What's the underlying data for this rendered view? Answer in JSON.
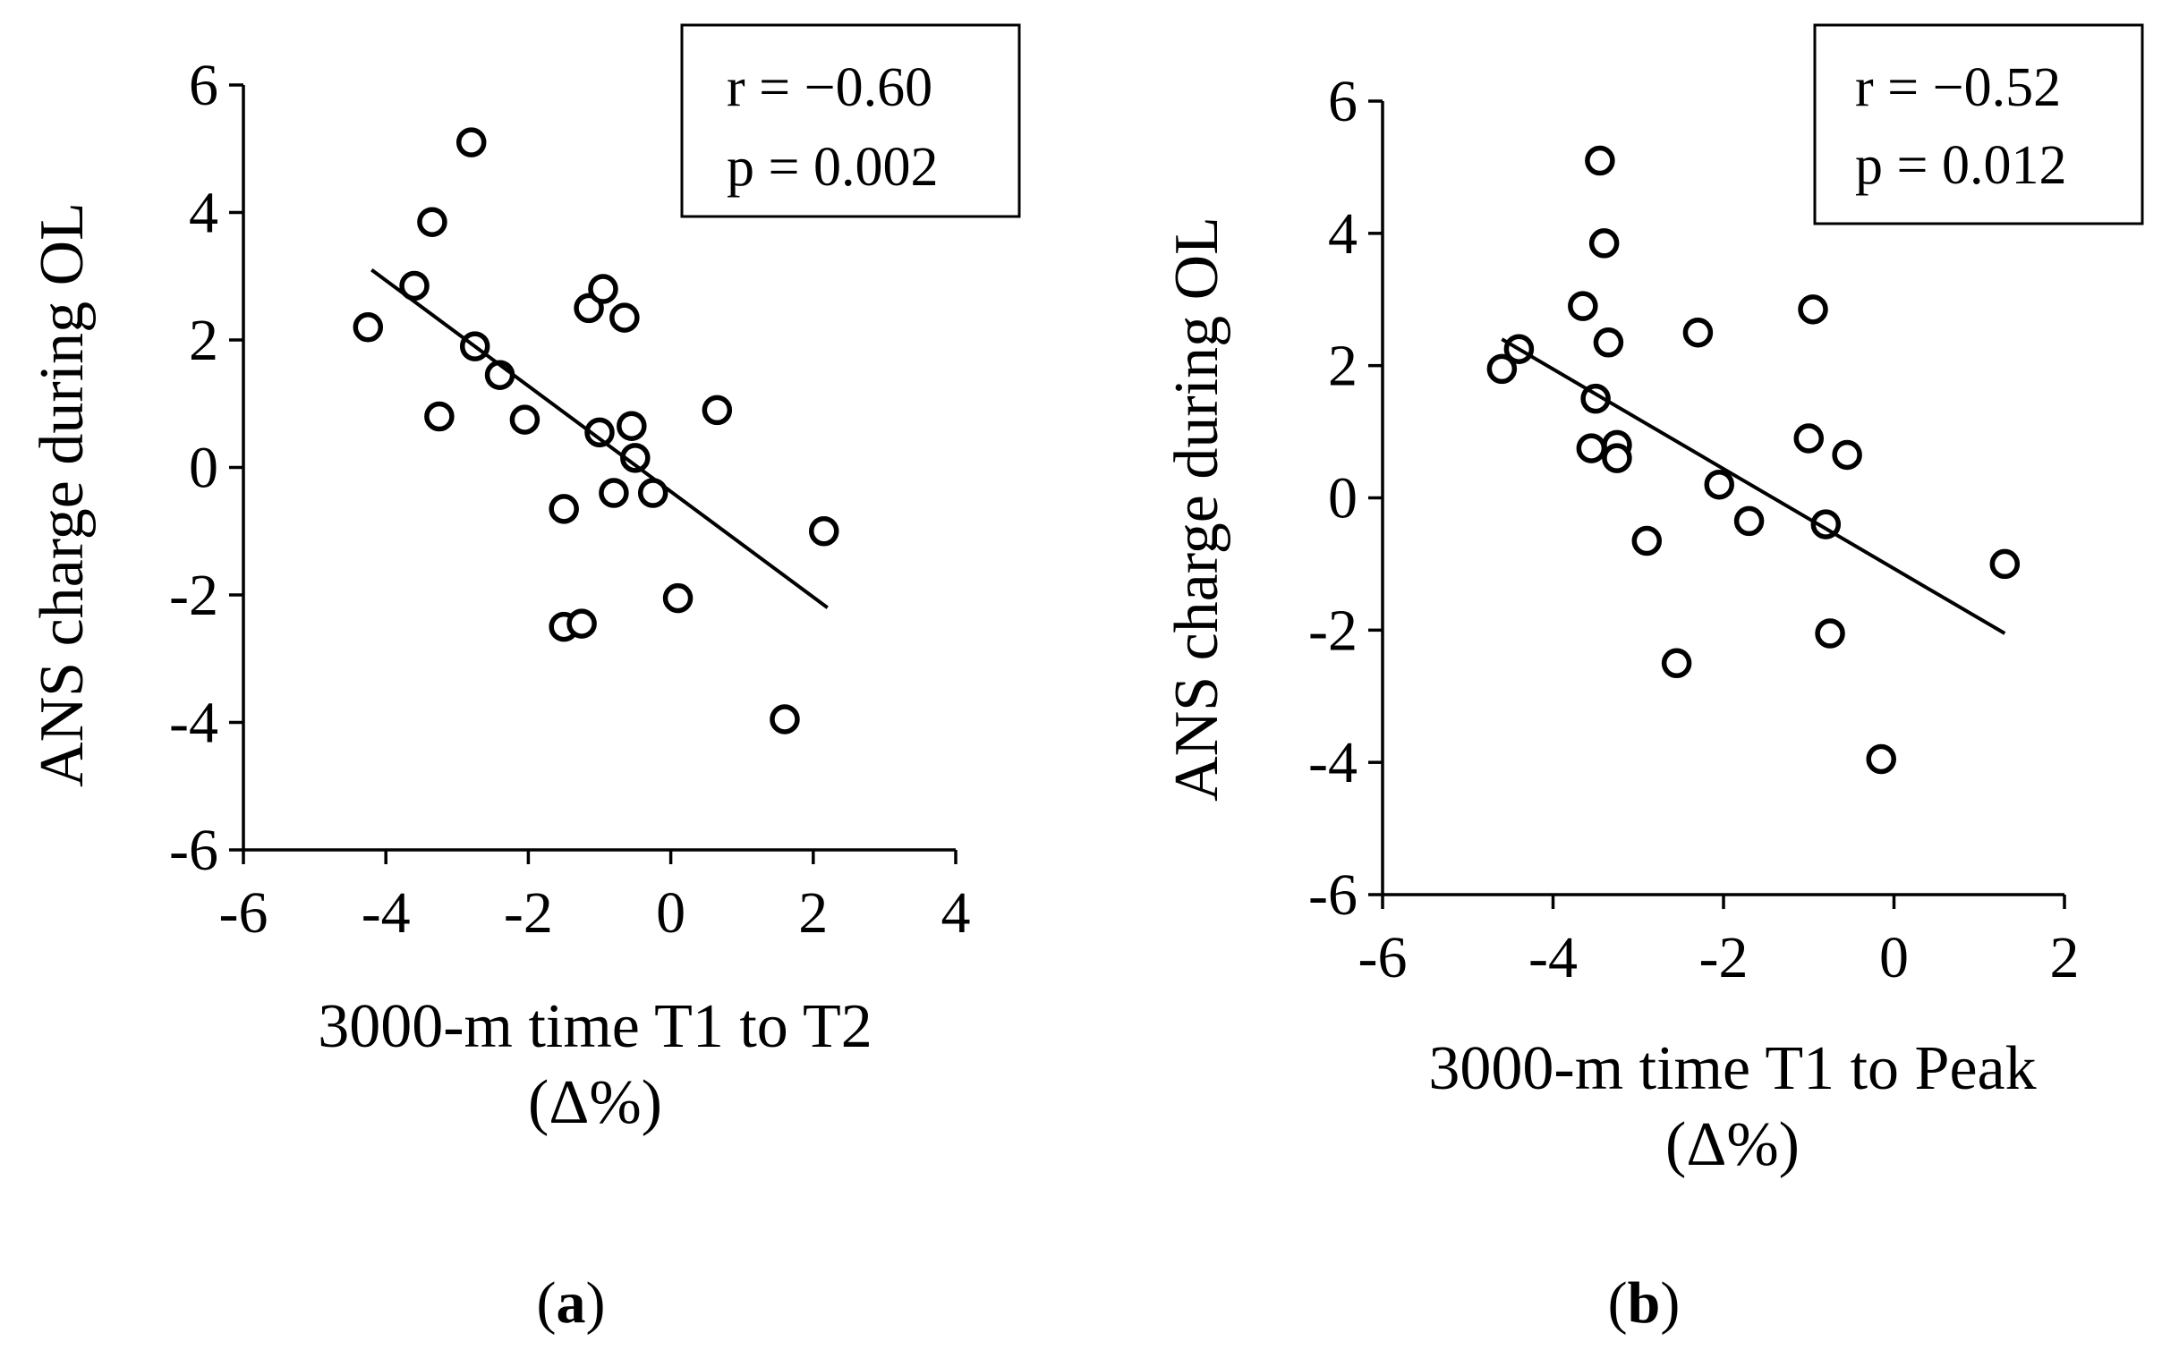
{
  "chart_data": [
    {
      "type": "scatter",
      "panel_label": "a",
      "xlabel": [
        "3000-m time T1 to T2",
        "(Δ%)"
      ],
      "ylabel": "ANS charge during OL",
      "xlim": [
        -6,
        4
      ],
      "ylim": [
        -6,
        6
      ],
      "xticks": [
        -6,
        -4,
        -2,
        0,
        2,
        4
      ],
      "yticks": [
        -6,
        -4,
        -2,
        0,
        2,
        4,
        6
      ],
      "grid": false,
      "stats": [
        "r = −0.60",
        "p = 0.002"
      ],
      "fit_line": {
        "x": [
          -4.2,
          2.2
        ],
        "y": [
          3.1,
          -2.2
        ]
      },
      "points": [
        {
          "x": -4.25,
          "y": 2.2
        },
        {
          "x": -3.6,
          "y": 2.85
        },
        {
          "x": -3.35,
          "y": 3.85
        },
        {
          "x": -3.25,
          "y": 0.8
        },
        {
          "x": -2.8,
          "y": 5.1
        },
        {
          "x": -2.75,
          "y": 1.9
        },
        {
          "x": -2.4,
          "y": 1.45
        },
        {
          "x": -2.05,
          "y": 0.75
        },
        {
          "x": -1.5,
          "y": -0.65
        },
        {
          "x": -1.5,
          "y": -2.5
        },
        {
          "x": -1.25,
          "y": -2.45
        },
        {
          "x": -1.15,
          "y": 2.5
        },
        {
          "x": -0.95,
          "y": 2.8
        },
        {
          "x": -1.0,
          "y": 0.55
        },
        {
          "x": -0.8,
          "y": -0.4
        },
        {
          "x": -0.65,
          "y": 2.35
        },
        {
          "x": -0.55,
          "y": 0.65
        },
        {
          "x": -0.5,
          "y": 0.15
        },
        {
          "x": -0.25,
          "y": -0.4
        },
        {
          "x": 0.1,
          "y": -2.05
        },
        {
          "x": 0.65,
          "y": 0.9
        },
        {
          "x": 1.6,
          "y": -3.95
        },
        {
          "x": 2.15,
          "y": -1.0
        }
      ]
    },
    {
      "type": "scatter",
      "panel_label": "b",
      "xlabel": [
        "3000-m time T1 to Peak",
        "(Δ%)"
      ],
      "ylabel": "ANS charge during OL",
      "xlim": [
        -6,
        2
      ],
      "ylim": [
        -6,
        6
      ],
      "xticks": [
        -6,
        -4,
        -2,
        0,
        2
      ],
      "yticks": [
        -6,
        -4,
        -2,
        0,
        2,
        4,
        6
      ],
      "grid": false,
      "stats": [
        "r = −0.52",
        "p = 0.012"
      ],
      "fit_line": {
        "x": [
          -4.6,
          1.3
        ],
        "y": [
          2.4,
          -2.05
        ]
      },
      "points": [
        {
          "x": -4.6,
          "y": 1.95
        },
        {
          "x": -4.4,
          "y": 2.25
        },
        {
          "x": -3.65,
          "y": 2.9
        },
        {
          "x": -3.55,
          "y": 0.75
        },
        {
          "x": -3.5,
          "y": 1.5
        },
        {
          "x": -3.45,
          "y": 5.1
        },
        {
          "x": -3.4,
          "y": 3.85
        },
        {
          "x": -3.35,
          "y": 2.35
        },
        {
          "x": -3.25,
          "y": 0.8
        },
        {
          "x": -3.25,
          "y": 0.6
        },
        {
          "x": -2.9,
          "y": -0.65
        },
        {
          "x": -2.55,
          "y": -2.5
        },
        {
          "x": -2.3,
          "y": 2.5
        },
        {
          "x": -2.05,
          "y": 0.2
        },
        {
          "x": -1.7,
          "y": -0.35
        },
        {
          "x": -1.0,
          "y": 0.9
        },
        {
          "x": -0.95,
          "y": 2.85
        },
        {
          "x": -0.8,
          "y": -0.4
        },
        {
          "x": -0.75,
          "y": -2.05
        },
        {
          "x": -0.55,
          "y": 0.65
        },
        {
          "x": -0.15,
          "y": -3.95
        },
        {
          "x": 1.3,
          "y": -1.0
        }
      ]
    }
  ]
}
